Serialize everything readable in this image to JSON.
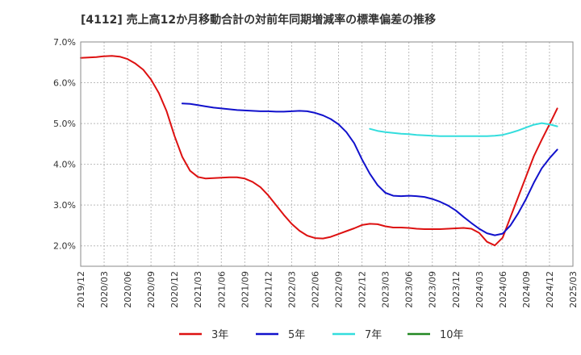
{
  "chart_data": {
    "type": "line",
    "title": "[4112]  売上高12か月移動合計の対前年同期増減率の標準偏差の推移",
    "xlabel": "",
    "ylabel": "",
    "ylim": [
      1.5,
      7.0
    ],
    "y_ticks": [
      2.0,
      3.0,
      4.0,
      5.0,
      6.0,
      7.0
    ],
    "y_tick_labels": [
      "2.0%",
      "3.0%",
      "4.0%",
      "5.0%",
      "6.0%",
      "7.0%"
    ],
    "x_range": [
      "2019/12",
      "2025/03"
    ],
    "x_tick_labels": [
      "2019/12",
      "2020/03",
      "2020/06",
      "2020/09",
      "2020/12",
      "2021/03",
      "2021/06",
      "2021/09",
      "2021/12",
      "2022/03",
      "2022/06",
      "2022/09",
      "2022/12",
      "2023/03",
      "2023/06",
      "2023/09",
      "2023/12",
      "2024/03",
      "2024/06",
      "2024/09",
      "2024/12",
      "2025/03"
    ],
    "grid": true,
    "legend_position": "bottom",
    "series": [
      {
        "name": "3年",
        "color": "#dd1111",
        "points": [
          [
            "2019/12",
            6.61
          ],
          [
            "2020/01",
            6.62
          ],
          [
            "2020/02",
            6.63
          ],
          [
            "2020/03",
            6.65
          ],
          [
            "2020/04",
            6.66
          ],
          [
            "2020/05",
            6.64
          ],
          [
            "2020/06",
            6.58
          ],
          [
            "2020/07",
            6.47
          ],
          [
            "2020/08",
            6.32
          ],
          [
            "2020/09",
            6.08
          ],
          [
            "2020/10",
            5.75
          ],
          [
            "2020/11",
            5.3
          ],
          [
            "2020/12",
            4.7
          ],
          [
            "2021/01",
            4.18
          ],
          [
            "2021/02",
            3.84
          ],
          [
            "2021/03",
            3.69
          ],
          [
            "2021/04",
            3.65
          ],
          [
            "2021/05",
            3.66
          ],
          [
            "2021/06",
            3.67
          ],
          [
            "2021/07",
            3.68
          ],
          [
            "2021/08",
            3.68
          ],
          [
            "2021/09",
            3.65
          ],
          [
            "2021/10",
            3.57
          ],
          [
            "2021/11",
            3.44
          ],
          [
            "2021/12",
            3.24
          ],
          [
            "2022/01",
            3.0
          ],
          [
            "2022/02",
            2.76
          ],
          [
            "2022/03",
            2.54
          ],
          [
            "2022/04",
            2.37
          ],
          [
            "2022/05",
            2.25
          ],
          [
            "2022/06",
            2.19
          ],
          [
            "2022/07",
            2.18
          ],
          [
            "2022/08",
            2.22
          ],
          [
            "2022/09",
            2.29
          ],
          [
            "2022/10",
            2.36
          ],
          [
            "2022/11",
            2.43
          ],
          [
            "2022/12",
            2.51
          ],
          [
            "2023/01",
            2.54
          ],
          [
            "2023/02",
            2.53
          ],
          [
            "2023/03",
            2.48
          ],
          [
            "2023/04",
            2.45
          ],
          [
            "2023/05",
            2.45
          ],
          [
            "2023/06",
            2.44
          ],
          [
            "2023/07",
            2.42
          ],
          [
            "2023/08",
            2.41
          ],
          [
            "2023/09",
            2.41
          ],
          [
            "2023/10",
            2.41
          ],
          [
            "2023/11",
            2.42
          ],
          [
            "2023/12",
            2.43
          ],
          [
            "2024/01",
            2.44
          ],
          [
            "2024/02",
            2.42
          ],
          [
            "2024/03",
            2.32
          ],
          [
            "2024/04",
            2.1
          ],
          [
            "2024/05",
            2.01
          ],
          [
            "2024/06",
            2.2
          ],
          [
            "2024/07",
            2.7
          ],
          [
            "2024/08",
            3.2
          ],
          [
            "2024/09",
            3.7
          ],
          [
            "2024/10",
            4.2
          ],
          [
            "2024/11",
            4.6
          ],
          [
            "2024/12",
            4.98
          ],
          [
            "2025/01",
            5.37
          ]
        ]
      },
      {
        "name": "5年",
        "color": "#1111cc",
        "points": [
          [
            "2021/01",
            5.49
          ],
          [
            "2021/02",
            5.48
          ],
          [
            "2021/03",
            5.45
          ],
          [
            "2021/04",
            5.42
          ],
          [
            "2021/05",
            5.39
          ],
          [
            "2021/06",
            5.37
          ],
          [
            "2021/07",
            5.35
          ],
          [
            "2021/08",
            5.33
          ],
          [
            "2021/09",
            5.32
          ],
          [
            "2021/10",
            5.31
          ],
          [
            "2021/11",
            5.3
          ],
          [
            "2021/12",
            5.3
          ],
          [
            "2022/01",
            5.29
          ],
          [
            "2022/02",
            5.29
          ],
          [
            "2022/03",
            5.3
          ],
          [
            "2022/04",
            5.31
          ],
          [
            "2022/05",
            5.3
          ],
          [
            "2022/06",
            5.26
          ],
          [
            "2022/07",
            5.2
          ],
          [
            "2022/08",
            5.11
          ],
          [
            "2022/09",
            4.98
          ],
          [
            "2022/10",
            4.79
          ],
          [
            "2022/11",
            4.52
          ],
          [
            "2022/12",
            4.12
          ],
          [
            "2023/01",
            3.77
          ],
          [
            "2023/02",
            3.49
          ],
          [
            "2023/03",
            3.3
          ],
          [
            "2023/04",
            3.23
          ],
          [
            "2023/05",
            3.22
          ],
          [
            "2023/06",
            3.23
          ],
          [
            "2023/07",
            3.22
          ],
          [
            "2023/08",
            3.2
          ],
          [
            "2023/09",
            3.15
          ],
          [
            "2023/10",
            3.08
          ],
          [
            "2023/11",
            2.99
          ],
          [
            "2023/12",
            2.87
          ],
          [
            "2024/01",
            2.71
          ],
          [
            "2024/02",
            2.56
          ],
          [
            "2024/03",
            2.42
          ],
          [
            "2024/04",
            2.31
          ],
          [
            "2024/05",
            2.26
          ],
          [
            "2024/06",
            2.3
          ],
          [
            "2024/07",
            2.5
          ],
          [
            "2024/08",
            2.8
          ],
          [
            "2024/09",
            3.15
          ],
          [
            "2024/10",
            3.55
          ],
          [
            "2024/11",
            3.9
          ],
          [
            "2024/12",
            4.15
          ],
          [
            "2025/01",
            4.36
          ]
        ]
      },
      {
        "name": "7年",
        "color": "#33dddd",
        "points": [
          [
            "2023/01",
            4.87
          ],
          [
            "2023/02",
            4.82
          ],
          [
            "2023/03",
            4.79
          ],
          [
            "2023/04",
            4.77
          ],
          [
            "2023/05",
            4.75
          ],
          [
            "2023/06",
            4.74
          ],
          [
            "2023/07",
            4.72
          ],
          [
            "2023/08",
            4.71
          ],
          [
            "2023/09",
            4.7
          ],
          [
            "2023/10",
            4.69
          ],
          [
            "2023/11",
            4.69
          ],
          [
            "2023/12",
            4.69
          ],
          [
            "2024/01",
            4.69
          ],
          [
            "2024/02",
            4.69
          ],
          [
            "2024/03",
            4.69
          ],
          [
            "2024/04",
            4.69
          ],
          [
            "2024/05",
            4.7
          ],
          [
            "2024/06",
            4.72
          ],
          [
            "2024/07",
            4.77
          ],
          [
            "2024/08",
            4.83
          ],
          [
            "2024/09",
            4.9
          ],
          [
            "2024/10",
            4.97
          ],
          [
            "2024/11",
            5.01
          ],
          [
            "2024/12",
            4.98
          ],
          [
            "2025/01",
            4.93
          ]
        ]
      },
      {
        "name": "10年",
        "color": "#228822",
        "points": []
      }
    ]
  }
}
